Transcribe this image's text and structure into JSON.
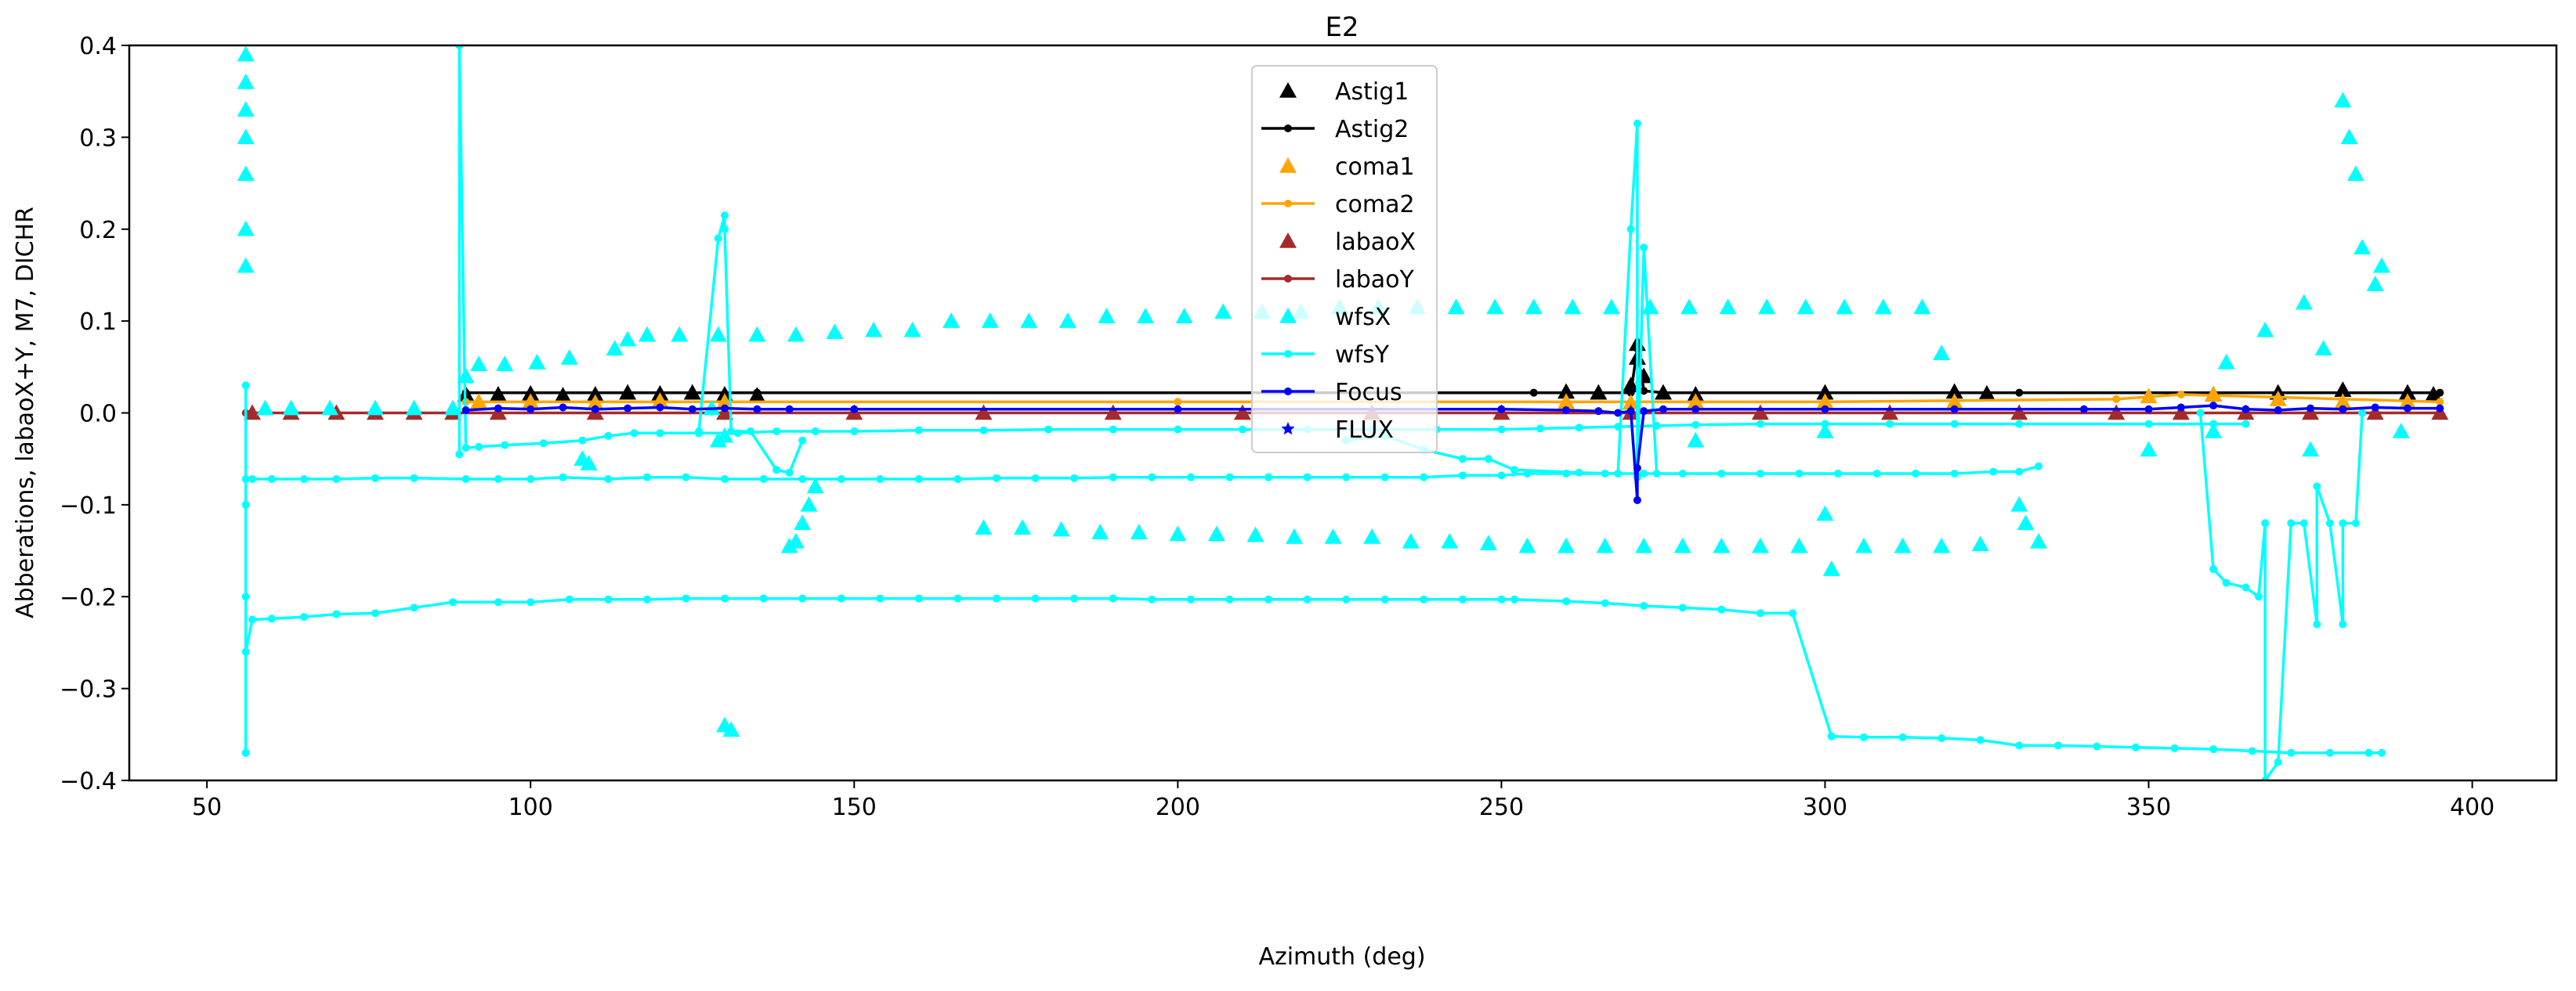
{
  "chart_data": {
    "type": "line",
    "title": "E2",
    "xlabel": "Azimuth (deg)",
    "ylabel": "Abberations, labaoX+Y, M7, DICHR",
    "xlim": [
      38,
      413
    ],
    "ylim": [
      -0.4,
      0.4
    ],
    "xticks": [
      50,
      100,
      150,
      200,
      250,
      300,
      350,
      400
    ],
    "xtick_labels": [
      "50",
      "100",
      "150",
      "200",
      "250",
      "300",
      "350",
      "400"
    ],
    "yticks": [
      -0.4,
      -0.3,
      -0.2,
      -0.1,
      0.0,
      0.1,
      0.2,
      0.3,
      0.4
    ],
    "ytick_labels": [
      "−0.4",
      "−0.3",
      "−0.2",
      "−0.1",
      "0.0",
      "0.1",
      "0.2",
      "0.3",
      "0.4"
    ],
    "grid": false,
    "legend_position": "top-center",
    "series": [
      {
        "name": "Astig1",
        "style": "triangle",
        "color": "#000000",
        "x": [
          90,
          95,
          100,
          105,
          110,
          115,
          120,
          125,
          130,
          135,
          260,
          265,
          270,
          271,
          271,
          272,
          275,
          280,
          300,
          320,
          325,
          360,
          370,
          380,
          390,
          394
        ],
        "y": [
          0.02,
          0.02,
          0.021,
          0.019,
          0.02,
          0.022,
          0.021,
          0.022,
          0.02,
          0.019,
          0.023,
          0.022,
          0.03,
          0.06,
          0.075,
          0.04,
          0.022,
          0.02,
          0.022,
          0.023,
          0.021,
          0.02,
          0.022,
          0.025,
          0.022,
          0.02
        ]
      },
      {
        "name": "Astig2",
        "style": "line",
        "color": "#000000",
        "x": [
          90,
          135,
          255,
          270,
          271,
          272,
          275,
          330,
          395
        ],
        "y": [
          0.022,
          0.022,
          0.022,
          0.022,
          0.07,
          0.024,
          0.022,
          0.022,
          0.022
        ]
      },
      {
        "name": "coma1",
        "style": "triangle",
        "color": "#ffa500",
        "x": [
          92,
          100,
          110,
          120,
          130,
          260,
          270,
          280,
          300,
          320,
          350,
          360,
          370,
          380,
          390
        ],
        "y": [
          0.012,
          0.012,
          0.011,
          0.013,
          0.012,
          0.012,
          0.011,
          0.012,
          0.012,
          0.012,
          0.018,
          0.02,
          0.015,
          0.012,
          0.012
        ]
      },
      {
        "name": "coma2",
        "style": "line",
        "color": "#ffa500",
        "x": [
          90,
          200,
          300,
          345,
          355,
          395
        ],
        "y": [
          0.012,
          0.012,
          0.012,
          0.015,
          0.02,
          0.012
        ]
      },
      {
        "name": "labaoX",
        "style": "triangle",
        "color": "#a52a2a",
        "x": [
          57,
          63,
          70,
          76,
          82,
          88,
          95,
          110,
          130,
          150,
          170,
          190,
          210,
          230,
          250,
          270,
          290,
          310,
          330,
          345,
          355,
          365,
          375,
          385,
          395
        ],
        "y": [
          0,
          0,
          0,
          0,
          0,
          0,
          0,
          0,
          0,
          0,
          0,
          0,
          0,
          0,
          0,
          0,
          0,
          0,
          0,
          0,
          0,
          0,
          0,
          0,
          0
        ]
      },
      {
        "name": "labaoY",
        "style": "line",
        "color": "#a52a2a",
        "x": [
          56,
          395
        ],
        "y": [
          0,
          0
        ]
      },
      {
        "name": "wfsX",
        "style": "triangle",
        "color": "#00ffff",
        "x": [
          56,
          56,
          56,
          56,
          56,
          56,
          56,
          59,
          63,
          69,
          76,
          82,
          88,
          90,
          92,
          96,
          101,
          106,
          113,
          115,
          118,
          123,
          129,
          135,
          141,
          147,
          153,
          159,
          165,
          171,
          177,
          183,
          189,
          195,
          201,
          207,
          213,
          219,
          225,
          231,
          237,
          243,
          249,
          255,
          261,
          267,
          273,
          279,
          285,
          291,
          297,
          303,
          309,
          315,
          318,
          130,
          131,
          140,
          141,
          142,
          143,
          144,
          170,
          176,
          182,
          188,
          194,
          200,
          206,
          212,
          218,
          224,
          230,
          236,
          242,
          248,
          254,
          260,
          266,
          272,
          278,
          284,
          290,
          296,
          300,
          301,
          306,
          312,
          318,
          324,
          330,
          331,
          333,
          362,
          368,
          374,
          377,
          380,
          381,
          382,
          383,
          385,
          386,
          108,
          109,
          128,
          129,
          130,
          280,
          300,
          350,
          360,
          375,
          389
        ],
        "y": [
          0.39,
          0.36,
          0.33,
          0.3,
          0.26,
          0.2,
          0.16,
          0.005,
          0.005,
          0.005,
          0.005,
          0.005,
          0.005,
          0.04,
          0.053,
          0.053,
          0.055,
          0.06,
          0.07,
          0.08,
          0.085,
          0.085,
          0.085,
          0.085,
          0.085,
          0.088,
          0.09,
          0.09,
          0.1,
          0.1,
          0.1,
          0.1,
          0.105,
          0.105,
          0.105,
          0.11,
          0.11,
          0.11,
          0.115,
          0.115,
          0.115,
          0.115,
          0.115,
          0.115,
          0.115,
          0.115,
          0.115,
          0.115,
          0.115,
          0.115,
          0.115,
          0.115,
          0.115,
          0.115,
          0.065,
          -0.34,
          -0.345,
          -0.145,
          -0.14,
          -0.12,
          -0.1,
          -0.08,
          -0.125,
          -0.125,
          -0.127,
          -0.13,
          -0.13,
          -0.132,
          -0.132,
          -0.133,
          -0.135,
          -0.135,
          -0.135,
          -0.14,
          -0.14,
          -0.142,
          -0.145,
          -0.145,
          -0.145,
          -0.145,
          -0.145,
          -0.145,
          -0.145,
          -0.145,
          -0.11,
          -0.17,
          -0.145,
          -0.145,
          -0.145,
          -0.143,
          -0.1,
          -0.12,
          -0.14,
          0.055,
          0.09,
          0.12,
          0.07,
          0.34,
          0.3,
          0.26,
          0.18,
          0.14,
          0.16,
          -0.05,
          -0.055,
          0.005,
          -0.03,
          -0.025,
          -0.03,
          -0.02,
          -0.04,
          -0.02,
          -0.04,
          -0.02
        ]
      },
      {
        "name": "wfsY",
        "style": "line",
        "color": "#00ffff",
        "segments": [
          {
            "x": [
              56,
              56,
              56,
              56,
              56,
              57,
              60,
              65,
              70,
              76,
              82,
              90,
              95,
              100,
              105,
              112,
              118,
              124,
              130,
              136,
              142,
              148,
              154,
              160,
              166,
              172,
              178,
              184,
              190,
              196,
              202,
              208,
              214,
              220,
              226,
              232,
              238,
              244,
              250,
              254,
              260,
              266,
              272,
              278,
              284,
              290,
              296,
              302,
              308,
              314,
              320,
              326,
              330,
              333
            ],
            "y": [
              0.03,
              -0.2,
              -0.37,
              -0.1,
              -0.072,
              -0.072,
              -0.072,
              -0.072,
              -0.072,
              -0.071,
              -0.071,
              -0.072,
              -0.072,
              -0.072,
              -0.07,
              -0.072,
              -0.07,
              -0.07,
              -0.072,
              -0.072,
              -0.072,
              -0.072,
              -0.072,
              -0.072,
              -0.072,
              -0.071,
              -0.071,
              -0.071,
              -0.07,
              -0.07,
              -0.07,
              -0.07,
              -0.07,
              -0.07,
              -0.07,
              -0.07,
              -0.07,
              -0.068,
              -0.068,
              -0.066,
              -0.066,
              -0.066,
              -0.066,
              -0.066,
              -0.066,
              -0.066,
              -0.066,
              -0.066,
              -0.066,
              -0.066,
              -0.066,
              -0.064,
              -0.064,
              -0.058
            ]
          },
          {
            "x": [
              56,
              56,
              57,
              60,
              65,
              70,
              76,
              82,
              88,
              95,
              100,
              106,
              112,
              118,
              124,
              130,
              136,
              142,
              148,
              154,
              160,
              166,
              172,
              178,
              184,
              190,
              196,
              202,
              208,
              214,
              220,
              226,
              232,
              238,
              244,
              250,
              252,
              260,
              266,
              272,
              278,
              284,
              290,
              295,
              301,
              306,
              312,
              318,
              324,
              330,
              336,
              342,
              348,
              354,
              360,
              366,
              372,
              378,
              384,
              386
            ],
            "y": [
              -0.37,
              -0.26,
              -0.225,
              -0.224,
              -0.222,
              -0.219,
              -0.218,
              -0.212,
              -0.206,
              -0.206,
              -0.206,
              -0.203,
              -0.203,
              -0.203,
              -0.202,
              -0.202,
              -0.202,
              -0.202,
              -0.202,
              -0.202,
              -0.202,
              -0.202,
              -0.202,
              -0.202,
              -0.202,
              -0.202,
              -0.203,
              -0.203,
              -0.203,
              -0.203,
              -0.203,
              -0.203,
              -0.203,
              -0.203,
              -0.203,
              -0.203,
              -0.203,
              -0.205,
              -0.207,
              -0.21,
              -0.212,
              -0.214,
              -0.218,
              -0.218,
              -0.352,
              -0.353,
              -0.353,
              -0.354,
              -0.356,
              -0.362,
              -0.362,
              -0.363,
              -0.364,
              -0.365,
              -0.366,
              -0.368,
              -0.37,
              -0.37,
              -0.37,
              -0.37
            ]
          },
          {
            "x": [
              89,
              89,
              90,
              92,
              96,
              102,
              108,
              112,
              116,
              120,
              126,
              132,
              138,
              144,
              150,
              160,
              170,
              180,
              190,
              200,
              210,
              220,
              230,
              240,
              250,
              256,
              262,
              268,
              274,
              280,
              290,
              300,
              310,
              320,
              330,
              350,
              360,
              365
            ],
            "y": [
              -0.045,
              0.4,
              -0.038,
              -0.037,
              -0.035,
              -0.033,
              -0.03,
              -0.025,
              -0.022,
              -0.022,
              -0.022,
              -0.022,
              -0.02,
              -0.02,
              -0.02,
              -0.019,
              -0.019,
              -0.018,
              -0.018,
              -0.018,
              -0.018,
              -0.018,
              -0.018,
              -0.018,
              -0.018,
              -0.017,
              -0.016,
              -0.015,
              -0.014,
              -0.013,
              -0.012,
              -0.012,
              -0.012,
              -0.012,
              -0.012,
              -0.012,
              -0.012,
              -0.012
            ]
          },
          {
            "x": [
              126,
              129,
              130,
              130,
              131,
              134,
              138,
              140,
              142
            ],
            "y": [
              -0.02,
              0.19,
              0.215,
              0.2,
              -0.02,
              -0.02,
              -0.062,
              -0.065,
              -0.03
            ]
          },
          {
            "x": [
              226,
              232,
              238,
              244,
              248,
              252,
              262,
              268,
              270,
              271,
              271,
              272,
              274
            ],
            "y": [
              -0.03,
              -0.025,
              -0.04,
              -0.05,
              -0.05,
              -0.062,
              -0.065,
              -0.066,
              0.2,
              0.315,
              -0.07,
              0.18,
              -0.066
            ]
          },
          {
            "x": [
              358,
              360,
              362,
              365,
              367,
              368,
              368,
              370,
              372,
              374,
              376,
              376,
              378,
              380,
              380,
              382,
              383
            ],
            "y": [
              0.0,
              -0.17,
              -0.185,
              -0.19,
              -0.2,
              -0.12,
              -0.4,
              -0.38,
              -0.12,
              -0.12,
              -0.23,
              -0.08,
              -0.12,
              -0.23,
              -0.12,
              -0.12,
              0.0
            ]
          }
        ]
      },
      {
        "name": "Focus",
        "style": "line",
        "color": "#0000ff",
        "x": [
          90,
          95,
          100,
          105,
          110,
          115,
          120,
          125,
          130,
          135,
          140,
          150,
          200,
          250,
          260,
          265,
          268,
          270,
          271,
          271,
          272,
          275,
          280,
          300,
          320,
          340,
          350,
          355,
          360,
          365,
          370,
          375,
          380,
          385,
          390,
          395
        ],
        "y": [
          0.003,
          0.005,
          0.004,
          0.006,
          0.004,
          0.005,
          0.006,
          0.004,
          0.005,
          0.004,
          0.004,
          0.004,
          0.004,
          0.004,
          0.003,
          0.002,
          0.0,
          0.002,
          -0.095,
          -0.06,
          0.002,
          0.004,
          0.004,
          0.004,
          0.004,
          0.004,
          0.004,
          0.006,
          0.008,
          0.004,
          0.003,
          0.005,
          0.004,
          0.006,
          0.005,
          0.005
        ]
      },
      {
        "name": "FLUX",
        "style": "star",
        "color": "#0000ff",
        "x": [],
        "y": []
      }
    ]
  }
}
